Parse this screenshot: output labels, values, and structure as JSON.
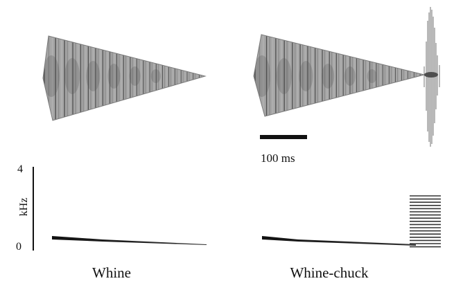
{
  "figure": {
    "panels": [
      {
        "label": "Whine"
      },
      {
        "label": "Whine-chuck"
      }
    ],
    "scale_bar": {
      "label": "100 ms"
    },
    "frequency_axis": {
      "label": "kHz",
      "ticks": [
        "4",
        "0"
      ]
    }
  },
  "colors": {
    "waveform_light": "#b3b3b3",
    "waveform_mid": "#8a8a8a",
    "waveform_dark": "#4f4f4f",
    "ink": "#111111"
  }
}
